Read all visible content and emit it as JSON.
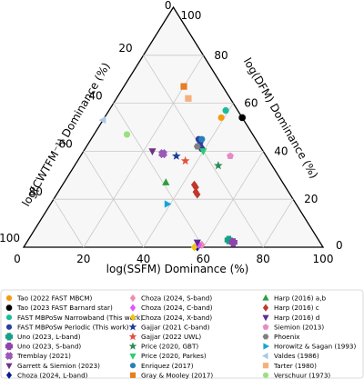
{
  "chart_data": {
    "type": "scatter",
    "subtype": "ternary",
    "axes": {
      "bottom": {
        "label": "log(SSFM) Dominance (%)",
        "ticks": [
          "0",
          "20",
          "40",
          "60",
          "80",
          "100"
        ]
      },
      "left": {
        "label": "log(CWTFM⁻¹) Dominance (%)",
        "ticks": [
          "0",
          "20",
          "40",
          "60",
          "80",
          "100"
        ]
      },
      "right": {
        "label": "log(DFM) Dominance (%)",
        "ticks": [
          "0",
          "20",
          "40",
          "60",
          "80",
          "100"
        ]
      }
    },
    "range": [
      0,
      100
    ],
    "grid": true,
    "legend_position": "bottom",
    "series": [
      {
        "name": "Tao (2022 FAST MBCM)",
        "marker": "circle",
        "color": "#f39c12",
        "points": [
          {
            "ssfm": 39,
            "cwt": 54,
            "dfm": 7
          }
        ]
      },
      {
        "name": "Tao (2023 FAST Barnard star)",
        "marker": "octagon",
        "color": "#000000",
        "points": [
          {
            "ssfm": 46,
            "cwt": 54,
            "dfm": 0
          }
        ]
      },
      {
        "name": "FAST MBPoSw Narrowband (This work)",
        "marker": "circle",
        "color": "#1abc9c",
        "points": [
          {
            "ssfm": 39,
            "cwt": 57,
            "dfm": 4
          }
        ]
      },
      {
        "name": "FAST MBPoSw Periodic (This work)",
        "marker": "circle",
        "color": "#2c3e9e",
        "points": [
          {
            "ssfm": 37,
            "cwt": 44,
            "dfm": 19
          },
          {
            "ssfm": 38,
            "cwt": 42,
            "dfm": 20
          },
          {
            "ssfm": 36,
            "cwt": 45,
            "dfm": 19
          },
          {
            "ssfm": 39,
            "cwt": 41,
            "dfm": 20
          }
        ]
      },
      {
        "name": "Uno (2023, L-band)",
        "marker": "plus",
        "color": "#16a085",
        "points": [
          {
            "ssfm": 67,
            "cwt": 3,
            "dfm": 30
          }
        ]
      },
      {
        "name": "Uno (2023, S-band)",
        "marker": "plus",
        "color": "#8e44ad",
        "points": [
          {
            "ssfm": 69,
            "cwt": 2,
            "dfm": 29
          }
        ]
      },
      {
        "name": "Tremblay (2021)",
        "marker": "x",
        "color": "#9b59b6",
        "points": [
          {
            "ssfm": 27,
            "cwt": 39,
            "dfm": 34
          }
        ]
      },
      {
        "name": "Garrett & Siemion (2023)",
        "marker": "triangle-down",
        "color": "#6c3483",
        "points": [
          {
            "ssfm": 23,
            "cwt": 40,
            "dfm": 37
          }
        ]
      },
      {
        "name": "Choza (2024, L-band)",
        "marker": "diamond",
        "color": "#0b1f8c",
        "points": [
          {
            "ssfm": 58,
            "cwt": 0,
            "dfm": 42
          }
        ]
      },
      {
        "name": "Choza (2024, S-band)",
        "marker": "diamond",
        "color": "#f08ab4",
        "points": [
          {
            "ssfm": 59,
            "cwt": 1,
            "dfm": 40
          }
        ]
      },
      {
        "name": "Choza (2024, C-band)",
        "marker": "diamond",
        "color": "#e056fd",
        "points": [
          {
            "ssfm": 58,
            "cwt": 1,
            "dfm": 41
          }
        ]
      },
      {
        "name": "Choza (2024, X-band)",
        "marker": "diamond",
        "color": "#f1c40f",
        "points": [
          {
            "ssfm": 57,
            "cwt": 0,
            "dfm": 43
          }
        ]
      },
      {
        "name": "Gajjar (2021 C-band)",
        "marker": "star",
        "color": "#1f3d99",
        "points": [
          {
            "ssfm": 32,
            "cwt": 38,
            "dfm": 30
          }
        ]
      },
      {
        "name": "Gajjar (2022 UWL)",
        "marker": "star",
        "color": "#e74c3c",
        "points": [
          {
            "ssfm": 36,
            "cwt": 36,
            "dfm": 28
          }
        ]
      },
      {
        "name": "Price (2020, GBT)",
        "marker": "star",
        "color": "#2e8b57",
        "points": [
          {
            "ssfm": 48,
            "cwt": 34,
            "dfm": 18
          }
        ]
      },
      {
        "name": "Price (2020, Parkes)",
        "marker": "triangle-down",
        "color": "#2ecc71",
        "points": [
          {
            "ssfm": 40,
            "cwt": 40,
            "dfm": 20
          }
        ]
      },
      {
        "name": "Enriquez (2017)",
        "marker": "circle",
        "color": "#2980b9",
        "points": [
          {
            "ssfm": 37,
            "cwt": 45,
            "dfm": 18
          }
        ]
      },
      {
        "name": "Gray & Mooley (2017)",
        "marker": "square",
        "color": "#e67e22",
        "points": [
          {
            "ssfm": 20,
            "cwt": 67,
            "dfm": 13
          }
        ]
      },
      {
        "name": "Harp (2016) a,b",
        "marker": "triangle-up",
        "color": "#2e9e3e",
        "points": [
          {
            "ssfm": 34,
            "cwt": 27,
            "dfm": 39
          }
        ]
      },
      {
        "name": "Harp (2016) c",
        "marker": "diamond",
        "color": "#c0392b",
        "points": [
          {
            "ssfm": 45,
            "cwt": 25,
            "dfm": 30
          },
          {
            "ssfm": 46,
            "cwt": 23,
            "dfm": 31
          },
          {
            "ssfm": 44,
            "cwt": 26,
            "dfm": 30
          },
          {
            "ssfm": 47,
            "cwt": 22,
            "dfm": 31
          }
        ]
      },
      {
        "name": "Harp (2016) d",
        "marker": "triangle-down",
        "color": "#5b2c91",
        "points": [
          {
            "ssfm": 57,
            "cwt": 2,
            "dfm": 41
          }
        ]
      },
      {
        "name": "Siemion (2013)",
        "marker": "pentagon",
        "color": "#e68ac3",
        "points": [
          {
            "ssfm": 50,
            "cwt": 38,
            "dfm": 12
          }
        ]
      },
      {
        "name": "Phoenix",
        "marker": "hexagon",
        "color": "#808080",
        "points": [
          {
            "ssfm": 37,
            "cwt": 42,
            "dfm": 21
          }
        ]
      },
      {
        "name": "Horowitz & Sagan (1993)",
        "marker": "triangle-right",
        "color": "#18a4d8",
        "points": [
          {
            "ssfm": 39,
            "cwt": 18,
            "dfm": 43
          }
        ]
      },
      {
        "name": "Valdes (1986)",
        "marker": "triangle-left",
        "color": "#a8c8e8",
        "points": [
          {
            "ssfm": 0,
            "cwt": 53,
            "dfm": 47
          }
        ]
      },
      {
        "name": "Tarter (1980)",
        "marker": "square",
        "color": "#f5b07a",
        "points": [
          {
            "ssfm": 24,
            "cwt": 62,
            "dfm": 14
          }
        ]
      },
      {
        "name": "Verschuur (1973)",
        "marker": "circle",
        "color": "#9be07f",
        "points": [
          {
            "ssfm": 11,
            "cwt": 47,
            "dfm": 42
          }
        ]
      }
    ]
  }
}
